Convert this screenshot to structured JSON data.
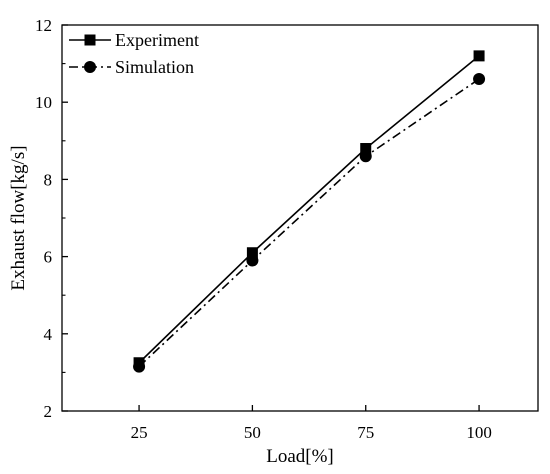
{
  "chart_data": {
    "type": "line",
    "xlabel": "Load[%]",
    "ylabel": "Exhaust flow[kg/s]",
    "x": [
      25,
      50,
      75,
      100
    ],
    "xticks": [
      25,
      50,
      75,
      100
    ],
    "xlim": [
      8,
      113
    ],
    "ylim": [
      2,
      12
    ],
    "yticks": [
      2,
      4,
      6,
      8,
      10,
      12
    ],
    "grid": false,
    "legend_position": "top-left",
    "series": [
      {
        "name": "Experiment",
        "values": [
          3.25,
          6.1,
          8.8,
          11.2
        ],
        "marker": "square",
        "line_style": "solid",
        "color": "#000000"
      },
      {
        "name": "Simulation",
        "values": [
          3.15,
          5.9,
          8.6,
          10.6
        ],
        "marker": "circle",
        "line_style": "dash-dot",
        "color": "#000000"
      }
    ]
  }
}
